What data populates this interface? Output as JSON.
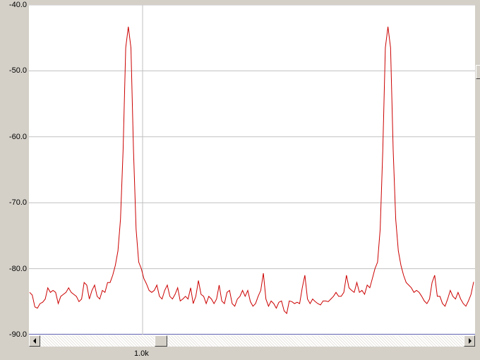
{
  "chart_data": {
    "type": "line",
    "ylim": [
      -90,
      -40
    ],
    "yticks": [
      "-40.0",
      "-50.0",
      "-60.0",
      "-70.0",
      "-80.0",
      "-90.0"
    ],
    "ytick_values": [
      -40,
      -50,
      -60,
      -70,
      -80,
      -90
    ],
    "xticks": [
      "1.0k"
    ],
    "grid": true,
    "series": [
      {
        "color": "#cc0000",
        "values": [
          -83.6,
          -84.0,
          -85.8,
          -86.0,
          -85.3,
          -85.1,
          -84.6,
          -82.9,
          -83.6,
          -83.3,
          -83.6,
          -85.3,
          -84.2,
          -83.9,
          -83.6,
          -82.9,
          -83.6,
          -83.9,
          -84.2,
          -85.0,
          -84.6,
          -82.1,
          -82.5,
          -84.6,
          -83.3,
          -82.5,
          -84.2,
          -84.6,
          -83.3,
          -83.6,
          -82.1,
          -82.1,
          -81.0,
          -79.5,
          -77.3,
          -72.5,
          -62.0,
          -46.5,
          -43.3,
          -46.5,
          -62.0,
          -74.0,
          -79.0,
          -80.0,
          -81.5,
          -82.3,
          -83.3,
          -83.6,
          -83.3,
          -82.5,
          -84.2,
          -84.6,
          -83.3,
          -82.5,
          -84.2,
          -84.6,
          -83.9,
          -82.9,
          -84.9,
          -84.6,
          -84.2,
          -84.6,
          -82.9,
          -85.3,
          -84.2,
          -81.8,
          -83.9,
          -84.2,
          -85.3,
          -84.2,
          -84.6,
          -85.3,
          -84.6,
          -82.5,
          -84.9,
          -85.3,
          -83.6,
          -83.3,
          -85.3,
          -85.7,
          -84.6,
          -84.2,
          -83.3,
          -84.2,
          -83.3,
          -85.0,
          -85.7,
          -85.3,
          -84.2,
          -83.3,
          -80.7,
          -84.6,
          -85.7,
          -84.9,
          -85.3,
          -86.0,
          -85.1,
          -84.9,
          -86.4,
          -86.8,
          -84.9,
          -85.0,
          -85.3,
          -85.1,
          -85.3,
          -82.9,
          -81.0,
          -84.6,
          -85.3,
          -84.6,
          -85.0,
          -85.3,
          -85.5,
          -84.9,
          -84.9,
          -85.0,
          -84.6,
          -84.2,
          -83.6,
          -84.2,
          -84.2,
          -83.6,
          -81.0,
          -82.9,
          -83.3,
          -83.6,
          -82.1,
          -83.6,
          -83.3,
          -83.9,
          -82.5,
          -82.9,
          -81.5,
          -80.0,
          -79.0,
          -74.0,
          -62.0,
          -46.5,
          -43.3,
          -46.5,
          -62.0,
          -72.5,
          -77.3,
          -79.5,
          -81.0,
          -82.1,
          -82.5,
          -82.9,
          -83.6,
          -83.3,
          -83.6,
          -84.2,
          -84.9,
          -85.3,
          -84.6,
          -82.1,
          -81.0,
          -84.2,
          -84.2,
          -85.3,
          -85.7,
          -84.6,
          -83.3,
          -84.2,
          -84.6,
          -83.6,
          -84.6,
          -85.3,
          -85.7,
          -84.9,
          -83.9,
          -82.0
        ]
      }
    ]
  }
}
